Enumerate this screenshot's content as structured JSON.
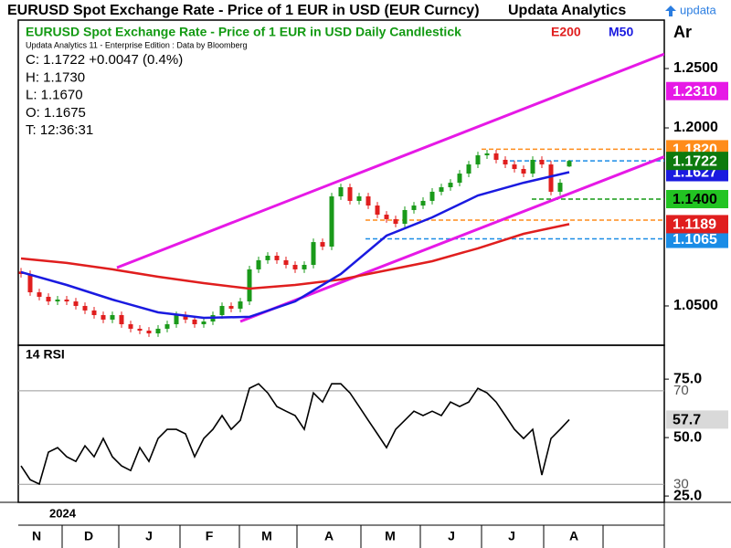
{
  "header": {
    "title": "EURUSD Spot Exchange Rate - Price of 1 EUR in USD (EUR Curncy)",
    "brand": "Updata Analytics",
    "logo": "updata",
    "corner": "Ar"
  },
  "time_axis": {
    "year": "2024",
    "categories": [
      "N",
      "D",
      "J",
      "F",
      "M",
      "A",
      "M",
      "J",
      "J",
      "A"
    ]
  },
  "chart_data": [
    {
      "type": "candlestick",
      "title": "EURUSD Spot Exchange Rate - Price of 1 EUR in USD Daily Candlestick",
      "source": "Updata Analytics 11 - Enterprise Edition : Data by Bloomberg",
      "info": [
        "C: 1.1722 +0.0047 (0.4%)",
        "H: 1.1730",
        "L: 1.1670",
        "O: 1.1675",
        "T: 12:36:31"
      ],
      "up_color": "#1a9a1a",
      "down_color": "#e01e1e",
      "open": [
        1.079,
        1.0769,
        1.0615,
        1.0577,
        1.0538,
        1.0554,
        1.0538,
        1.05,
        1.0462,
        1.0423,
        1.0385,
        1.0423,
        1.0346,
        1.0308,
        1.0292,
        1.0269,
        1.0308,
        1.0346,
        1.0423,
        1.0385,
        1.0346,
        1.0369,
        1.0423,
        1.05,
        1.0477,
        1.0538,
        1.0808,
        1.0885,
        1.0923,
        1.0885,
        1.0846,
        1.0808,
        1.0846,
        1.1038,
        1.1,
        1.1423,
        1.15,
        1.1385,
        1.1423,
        1.1346,
        1.1269,
        1.1231,
        1.1192,
        1.1308,
        1.1346,
        1.1385,
        1.1462,
        1.15,
        1.1538,
        1.1615,
        1.1692,
        1.1769,
        1.1785,
        1.1731,
        1.1692,
        1.1654,
        1.1615,
        1.1731,
        1.1692,
        1.1462,
        1.1675
      ],
      "high": [
        1.082,
        1.0799,
        1.0645,
        1.0607,
        1.0584,
        1.0584,
        1.0568,
        1.053,
        1.0492,
        1.0453,
        1.0453,
        1.0453,
        1.0376,
        1.0338,
        1.0322,
        1.0338,
        1.0376,
        1.0453,
        1.0453,
        1.0415,
        1.0399,
        1.0453,
        1.053,
        1.053,
        1.0568,
        1.0838,
        1.0915,
        1.0953,
        1.0953,
        1.0915,
        1.0876,
        1.0876,
        1.1068,
        1.1068,
        1.1453,
        1.153,
        1.153,
        1.1453,
        1.1453,
        1.1376,
        1.1299,
        1.1261,
        1.1338,
        1.1376,
        1.1415,
        1.1492,
        1.153,
        1.1568,
        1.1645,
        1.1722,
        1.1799,
        1.1815,
        1.1815,
        1.1761,
        1.1722,
        1.1684,
        1.1761,
        1.1761,
        1.1722,
        1.1568,
        1.173
      ],
      "low": [
        1.0739,
        1.0585,
        1.0547,
        1.0508,
        1.0508,
        1.0508,
        1.047,
        1.0432,
        1.0393,
        1.0355,
        1.0355,
        1.0316,
        1.0278,
        1.0262,
        1.0239,
        1.0239,
        1.0278,
        1.0316,
        1.0355,
        1.0316,
        1.0316,
        1.0339,
        1.0393,
        1.0447,
        1.0447,
        1.0508,
        1.0778,
        1.0855,
        1.0855,
        1.0816,
        1.0778,
        1.0778,
        1.0816,
        1.097,
        1.097,
        1.1393,
        1.1355,
        1.1355,
        1.1316,
        1.1239,
        1.1201,
        1.1162,
        1.1162,
        1.1278,
        1.1316,
        1.1355,
        1.1432,
        1.147,
        1.1508,
        1.1585,
        1.1662,
        1.1739,
        1.1701,
        1.1662,
        1.1624,
        1.1585,
        1.1585,
        1.1662,
        1.1432,
        1.1432,
        1.167
      ],
      "close": [
        1.0769,
        1.0615,
        1.0577,
        1.0538,
        1.0554,
        1.0538,
        1.05,
        1.0462,
        1.0423,
        1.0385,
        1.0423,
        1.0346,
        1.0308,
        1.0292,
        1.0269,
        1.0308,
        1.0346,
        1.0423,
        1.0385,
        1.0346,
        1.0369,
        1.0423,
        1.05,
        1.0477,
        1.0538,
        1.0808,
        1.0885,
        1.0923,
        1.0885,
        1.0846,
        1.0808,
        1.0846,
        1.1038,
        1.1,
        1.1423,
        1.15,
        1.1385,
        1.1423,
        1.1346,
        1.1269,
        1.1231,
        1.1192,
        1.1308,
        1.1346,
        1.1385,
        1.1462,
        1.15,
        1.1538,
        1.1615,
        1.1692,
        1.1769,
        1.1785,
        1.1731,
        1.1692,
        1.1654,
        1.1615,
        1.1731,
        1.1692,
        1.1462,
        1.1538,
        1.1722
      ],
      "series": [
        {
          "name": "E200",
          "color": "#e01e1e",
          "values": [
            1.09,
            1.0862,
            1.0808,
            1.0746,
            1.0692,
            1.0646,
            1.0677,
            1.0723,
            1.08,
            1.0877,
            1.0985,
            1.1108,
            1.1189
          ]
        },
        {
          "name": "M50",
          "color": "#1a1ae0",
          "values": [
            1.0785,
            1.0677,
            1.0554,
            1.0446,
            1.04,
            1.0408,
            1.0538,
            1.0769,
            1.1092,
            1.1246,
            1.1431,
            1.1538,
            1.1627
          ]
        }
      ],
      "trendlines": [
        {
          "color": "#e619e6",
          "values": [
            1.0823,
            1.231
          ]
        },
        {
          "color": "#e619e6",
          "values": [
            1.0369,
            1.1446
          ]
        }
      ],
      "levels": [
        {
          "value": 1.182,
          "color": "#ff8c1a"
        },
        {
          "value": 1.1722,
          "color": "#1a8ce6"
        },
        {
          "value": 1.14,
          "color": "#139a13"
        },
        {
          "value": 1.1223,
          "color": "#ff8c1a"
        },
        {
          "value": 1.1065,
          "color": "#1a8ce6"
        }
      ],
      "price_labels": [
        {
          "value": 1.231,
          "label": "1.2310",
          "color": "#e619e6",
          "text_color": "#ffffff"
        },
        {
          "value": 1.182,
          "label": "1.1820",
          "color": "#ff8c1a",
          "text_color": "#ffffff"
        },
        {
          "value": 1.1627,
          "label": "1.1627",
          "color": "#1a1ae0",
          "text_color": "#ffffff"
        },
        {
          "value": 1.14,
          "label": "1.1400",
          "color": "#22c422",
          "text_color": "#000000"
        },
        {
          "value": 1.1065,
          "label": "1.1065",
          "color": "#1a8ce6",
          "text_color": "#ffffff"
        },
        {
          "value": 1.1189,
          "label": "1.1189",
          "color": "#e01e1e",
          "text_color": "#ffffff"
        },
        {
          "value": 1.1722,
          "label": "1.1722",
          "color": "#0d7a0d",
          "text_color": "#ffffff"
        }
      ],
      "ylim": [
        1.0169,
        1.2908
      ],
      "yticks": [
        {
          "value": 1.05,
          "label": "1.0500"
        },
        {
          "value": 1.2,
          "label": "1.2000"
        },
        {
          "value": 1.25,
          "label": "1.2500"
        }
      ]
    },
    {
      "type": "line",
      "title": "14 RSI",
      "color": "#000000",
      "values": [
        37.9,
        32.0,
        30.1,
        43.8,
        45.7,
        41.8,
        39.8,
        46.5,
        41.8,
        49.6,
        41.8,
        37.9,
        35.9,
        45.7,
        39.8,
        49.6,
        53.5,
        53.5,
        51.6,
        41.8,
        49.6,
        53.5,
        59.4,
        53.5,
        57.4,
        71.1,
        73.0,
        69.1,
        63.3,
        61.3,
        59.4,
        53.5,
        69.1,
        65.2,
        73.0,
        73.0,
        69.1,
        63.3,
        57.4,
        51.6,
        45.7,
        53.5,
        57.4,
        61.3,
        59.4,
        61.3,
        59.4,
        65.2,
        63.3,
        65.2,
        71.1,
        69.1,
        65.2,
        59.4,
        53.5,
        49.6,
        53.5,
        34.0,
        49.6,
        53.5,
        57.7
      ],
      "ylim": [
        22.3,
        89.5
      ],
      "yticks": [
        {
          "value": 75,
          "label": "75.0"
        },
        {
          "value": 50,
          "label": "50.0"
        },
        {
          "value": 25,
          "label": "25.0"
        }
      ],
      "levels": [
        70,
        30
      ]
    }
  ]
}
